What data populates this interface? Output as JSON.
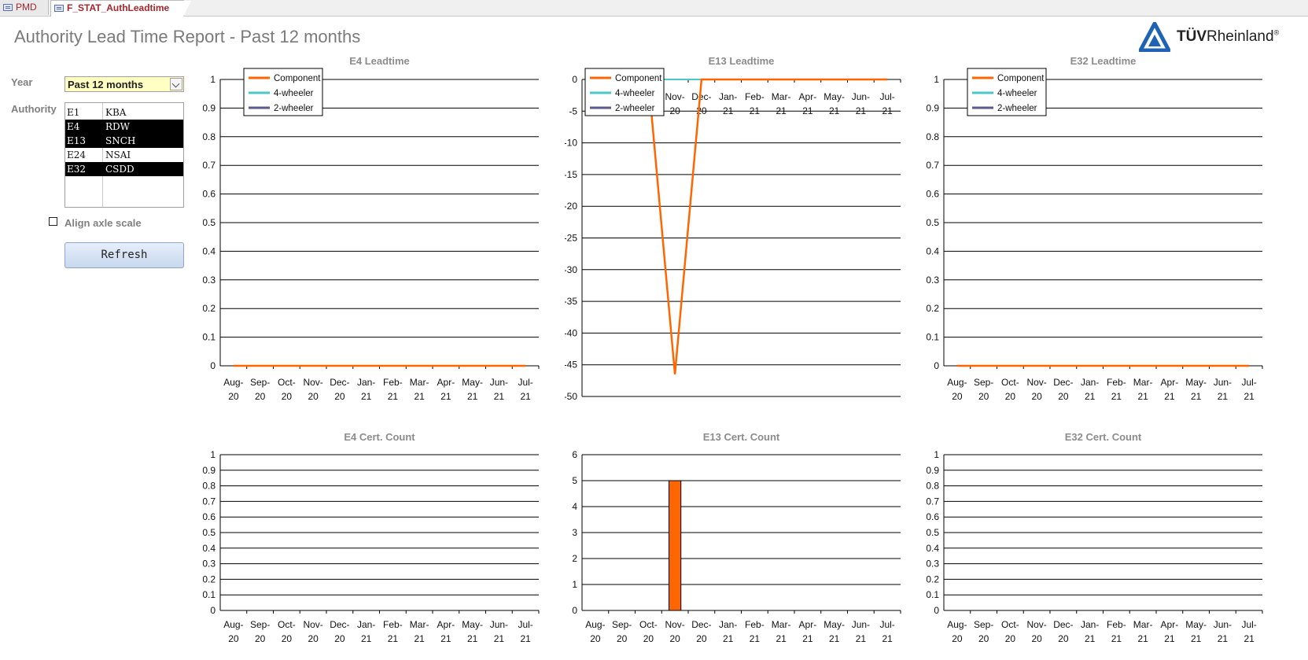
{
  "tabs": [
    {
      "label": "PMD"
    },
    {
      "label": "F_STAT_AuthLeadtime"
    }
  ],
  "page_title": "Authority Lead Time Report - Past 12 months",
  "logo": {
    "brand_bold": "TÜV",
    "brand": "Rheinland",
    "mark": "®"
  },
  "filters": {
    "year_label": "Year",
    "year_value": "Past 12 months",
    "authority_label": "Authority",
    "authorities": [
      {
        "code": "E1",
        "name": "KBA",
        "selected": false
      },
      {
        "code": "E4",
        "name": "RDW",
        "selected": true
      },
      {
        "code": "E13",
        "name": "SNCH",
        "selected": true
      },
      {
        "code": "E24",
        "name": "NSAI",
        "selected": false
      },
      {
        "code": "E32",
        "name": "CSDD",
        "selected": true
      }
    ],
    "align_label": "Align axle scale",
    "align_checked": false,
    "refresh_label": "Refresh"
  },
  "colors": {
    "component": "#ff6600",
    "four_wheeler": "#4cc7c7",
    "two_wheeler": "#5a5a8c",
    "bar": "#ff6600"
  },
  "chart_data": [
    {
      "type": "line",
      "title": "E4 Leadtime",
      "categories": [
        "Aug-20",
        "Sep-20",
        "Oct-20",
        "Nov-20",
        "Dec-20",
        "Jan-21",
        "Feb-21",
        "Mar-21",
        "Apr-21",
        "May-21",
        "Jun-21",
        "Jul-21"
      ],
      "ylim": [
        0,
        1
      ],
      "yticks": [
        "1",
        "0.9",
        "0.8",
        "0.7",
        "0.6",
        "0.5",
        "0.4",
        "0.3",
        "0.2",
        "0.1",
        "0"
      ],
      "legend": [
        "Component",
        "4-wheeler",
        "2-wheeler"
      ],
      "series": [
        {
          "name": "Component",
          "values": [
            0,
            0,
            0,
            0,
            0,
            0,
            0,
            0,
            0,
            0,
            0,
            0
          ]
        },
        {
          "name": "4-wheeler",
          "values": [
            0,
            0,
            0,
            0,
            0,
            0,
            0,
            0,
            0,
            0,
            0,
            0
          ]
        },
        {
          "name": "2-wheeler",
          "values": [
            0,
            0,
            0,
            0,
            0,
            0,
            0,
            0,
            0,
            0,
            0,
            0
          ]
        }
      ]
    },
    {
      "type": "line",
      "title": "E13 Leadtime",
      "categories": [
        "Aug-20",
        "Sep-20",
        "Oct-20",
        "Nov-20",
        "Dec-20",
        "Jan-21",
        "Feb-21",
        "Mar-21",
        "Apr-21",
        "May-21",
        "Jun-21",
        "Jul-21"
      ],
      "ylim": [
        -50,
        0
      ],
      "yticks": [
        "0",
        "-5",
        "-10",
        "-15",
        "-20",
        "-25",
        "-30",
        "-35",
        "-40",
        "-45",
        "-50"
      ],
      "legend": [
        "Component",
        "4-wheeler",
        "2-wheeler"
      ],
      "series": [
        {
          "name": "Component",
          "values": [
            0,
            0,
            0,
            -46.5,
            0,
            0,
            0,
            0,
            0,
            0,
            0,
            0
          ]
        },
        {
          "name": "4-wheeler",
          "values": [
            0,
            0,
            0,
            0,
            0,
            0,
            0,
            0,
            0,
            0,
            0,
            0
          ]
        },
        {
          "name": "2-wheeler",
          "values": [
            0,
            0,
            0,
            0,
            0,
            0,
            0,
            0,
            0,
            0,
            0,
            0
          ]
        }
      ]
    },
    {
      "type": "line",
      "title": "E32 Leadtime",
      "categories": [
        "Aug-20",
        "Sep-20",
        "Oct-20",
        "Nov-20",
        "Dec-20",
        "Jan-21",
        "Feb-21",
        "Mar-21",
        "Apr-21",
        "May-21",
        "Jun-21",
        "Jul-21"
      ],
      "ylim": [
        0,
        1
      ],
      "yticks": [
        "1",
        "0.9",
        "0.8",
        "0.7",
        "0.6",
        "0.5",
        "0.4",
        "0.3",
        "0.2",
        "0.1",
        "0"
      ],
      "legend": [
        "Component",
        "4-wheeler",
        "2-wheeler"
      ],
      "series": [
        {
          "name": "Component",
          "values": [
            0,
            0,
            0,
            0,
            0,
            0,
            0,
            0,
            0,
            0,
            0,
            0
          ]
        },
        {
          "name": "4-wheeler",
          "values": [
            0,
            0,
            0,
            0,
            0,
            0,
            0,
            0,
            0,
            0,
            0,
            0
          ]
        },
        {
          "name": "2-wheeler",
          "values": [
            0,
            0,
            0,
            0,
            0,
            0,
            0,
            0,
            0,
            0,
            0,
            0
          ]
        }
      ]
    },
    {
      "type": "bar",
      "title": "E4 Cert. Count",
      "categories": [
        "Aug-20",
        "Sep-20",
        "Oct-20",
        "Nov-20",
        "Dec-20",
        "Jan-21",
        "Feb-21",
        "Mar-21",
        "Apr-21",
        "May-21",
        "Jun-21",
        "Jul-21"
      ],
      "ylim": [
        0,
        1
      ],
      "yticks": [
        "1",
        "0.9",
        "0.8",
        "0.7",
        "0.6",
        "0.5",
        "0.4",
        "0.3",
        "0.2",
        "0.1",
        "0"
      ],
      "values": [
        0,
        0,
        0,
        0,
        0,
        0,
        0,
        0,
        0,
        0,
        0,
        0
      ]
    },
    {
      "type": "bar",
      "title": "E13 Cert. Count",
      "categories": [
        "Aug-20",
        "Sep-20",
        "Oct-20",
        "Nov-20",
        "Dec-20",
        "Jan-21",
        "Feb-21",
        "Mar-21",
        "Apr-21",
        "May-21",
        "Jun-21",
        "Jul-21"
      ],
      "ylim": [
        0,
        6
      ],
      "yticks": [
        "6",
        "5",
        "4",
        "3",
        "2",
        "1",
        "0"
      ],
      "values": [
        0,
        0,
        0,
        5,
        0,
        0,
        0,
        0,
        0,
        0,
        0,
        0
      ]
    },
    {
      "type": "bar",
      "title": "E32 Cert. Count",
      "categories": [
        "Aug-20",
        "Sep-20",
        "Oct-20",
        "Nov-20",
        "Dec-20",
        "Jan-21",
        "Feb-21",
        "Mar-21",
        "Apr-21",
        "May-21",
        "Jun-21",
        "Jul-21"
      ],
      "ylim": [
        0,
        1
      ],
      "yticks": [
        "1",
        "0.9",
        "0.8",
        "0.7",
        "0.6",
        "0.5",
        "0.4",
        "0.3",
        "0.2",
        "0.1",
        "0"
      ],
      "values": [
        0,
        0,
        0,
        0,
        0,
        0,
        0,
        0,
        0,
        0,
        0,
        0
      ]
    }
  ]
}
